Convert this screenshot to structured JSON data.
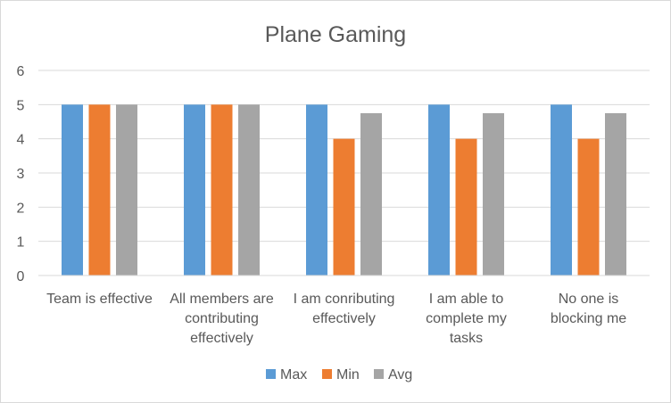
{
  "chart_data": {
    "type": "bar",
    "title": "Plane Gaming",
    "xlabel": "",
    "ylabel": "",
    "ylim": [
      0,
      6
    ],
    "yticks": [
      "0",
      "1",
      "2",
      "3",
      "4",
      "5",
      "6"
    ],
    "grid": true,
    "legend_position": "bottom",
    "categories": [
      [
        "Team is effective"
      ],
      [
        "All members are",
        "contributing",
        "effectively"
      ],
      [
        "I am conributing",
        "effectively"
      ],
      [
        "I am able to",
        "complete my",
        "tasks"
      ],
      [
        "No one is",
        "blocking me"
      ]
    ],
    "series": [
      {
        "name": "Max",
        "color": "#5b9bd5",
        "values": [
          5,
          5,
          5,
          5,
          5
        ]
      },
      {
        "name": "Min",
        "color": "#ed7d31",
        "values": [
          5,
          5,
          4,
          4,
          4
        ]
      },
      {
        "name": "Avg",
        "color": "#a5a5a5",
        "values": [
          5,
          5,
          4.75,
          4.75,
          4.75
        ]
      }
    ]
  }
}
